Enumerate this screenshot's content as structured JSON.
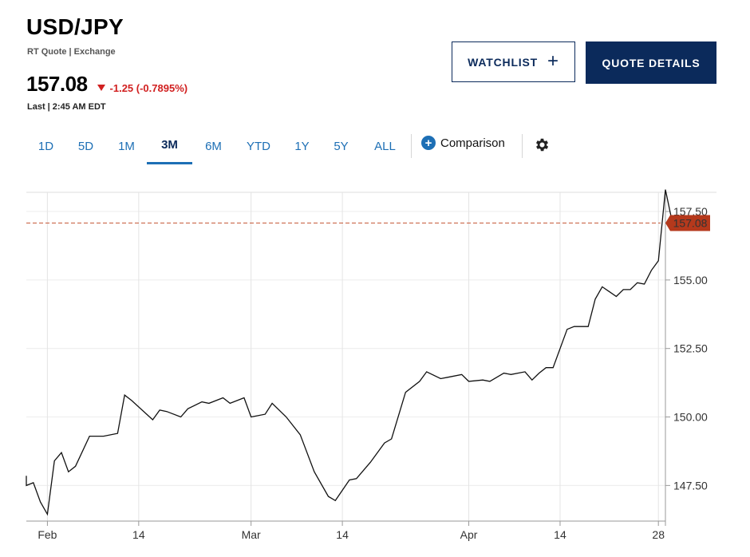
{
  "header": {
    "symbol": "USD/JPY",
    "subline": "RT Quote | Exchange",
    "price": "157.08",
    "change": "-1.25 (-0.7895%)",
    "last": "Last | 2:45 AM EDT"
  },
  "buttons": {
    "watchlist": "WATCHLIST",
    "quote_details": "QUOTE DETAILS"
  },
  "tabs": [
    {
      "label": "1D",
      "active": false
    },
    {
      "label": "5D",
      "active": false
    },
    {
      "label": "1M",
      "active": false
    },
    {
      "label": "3M",
      "active": true
    },
    {
      "label": "6M",
      "active": false
    },
    {
      "label": "YTD",
      "active": false
    },
    {
      "label": "1Y",
      "active": false
    },
    {
      "label": "5Y",
      "active": false
    },
    {
      "label": "ALL",
      "active": false
    }
  ],
  "comparison_label": "Comparison",
  "colors": {
    "accent": "#1d6fb5",
    "navy": "#0b2a5b",
    "down": "#d12020",
    "price_tag": "#b5391c",
    "last_line": "#c55a3a"
  },
  "icons": {
    "watchlist": "plus-icon",
    "comparison": "plus-circle-icon",
    "settings": "gear-icon"
  },
  "chart_data": {
    "type": "line",
    "title": "",
    "xlabel": "",
    "ylabel": "",
    "ylim": [
      146.2,
      158.2
    ],
    "xlim": [
      "2024-01-29",
      "2024-04-29"
    ],
    "y_ticks": [
      147.5,
      150.0,
      152.5,
      155.0,
      157.5
    ],
    "y_tick_labels": [
      "147.50",
      "150.00",
      "152.50",
      "155.00",
      "157.50"
    ],
    "x_ticks": [
      "2024-02-01",
      "2024-02-14",
      "2024-03-01",
      "2024-03-14",
      "2024-04-01",
      "2024-04-14",
      "2024-04-28"
    ],
    "x_tick_labels": [
      "Feb",
      "14",
      "Mar",
      "14",
      "Apr",
      "14",
      "28"
    ],
    "grid": true,
    "last_value": 157.08,
    "last_value_label": "157.08",
    "series": [
      {
        "points": [
          [
            "2024-01-29",
            147.85
          ],
          [
            "2024-01-29",
            147.5
          ],
          [
            "2024-01-30",
            147.6
          ],
          [
            "2024-01-31",
            146.9
          ],
          [
            "2024-02-01",
            146.45
          ],
          [
            "2024-02-02",
            148.4
          ],
          [
            "2024-02-03",
            148.7
          ],
          [
            "2024-02-04",
            148.0
          ],
          [
            "2024-02-05",
            148.2
          ],
          [
            "2024-02-07",
            149.3
          ],
          [
            "2024-02-09",
            149.3
          ],
          [
            "2024-02-11",
            149.4
          ],
          [
            "2024-02-12",
            150.8
          ],
          [
            "2024-02-13",
            150.6
          ],
          [
            "2024-02-16",
            149.9
          ],
          [
            "2024-02-17",
            150.25
          ],
          [
            "2024-02-18",
            150.2
          ],
          [
            "2024-02-20",
            150.0
          ],
          [
            "2024-02-21",
            150.3
          ],
          [
            "2024-02-23",
            150.55
          ],
          [
            "2024-02-24",
            150.5
          ],
          [
            "2024-02-26",
            150.7
          ],
          [
            "2024-02-27",
            150.5
          ],
          [
            "2024-02-29",
            150.7
          ],
          [
            "2024-03-01",
            150.0
          ],
          [
            "2024-03-03",
            150.1
          ],
          [
            "2024-03-04",
            150.5
          ],
          [
            "2024-03-06",
            150.0
          ],
          [
            "2024-03-08",
            149.35
          ],
          [
            "2024-03-10",
            148.0
          ],
          [
            "2024-03-12",
            147.1
          ],
          [
            "2024-03-13",
            146.95
          ],
          [
            "2024-03-15",
            147.7
          ],
          [
            "2024-03-16",
            147.75
          ],
          [
            "2024-03-18",
            148.35
          ],
          [
            "2024-03-20",
            149.05
          ],
          [
            "2024-03-21",
            149.2
          ],
          [
            "2024-03-23",
            150.9
          ],
          [
            "2024-03-25",
            151.3
          ],
          [
            "2024-03-26",
            151.65
          ],
          [
            "2024-03-28",
            151.4
          ],
          [
            "2024-03-29",
            151.45
          ],
          [
            "2024-03-31",
            151.55
          ],
          [
            "2024-04-01",
            151.3
          ],
          [
            "2024-04-03",
            151.35
          ],
          [
            "2024-04-04",
            151.3
          ],
          [
            "2024-04-06",
            151.6
          ],
          [
            "2024-04-07",
            151.55
          ],
          [
            "2024-04-09",
            151.65
          ],
          [
            "2024-04-10",
            151.35
          ],
          [
            "2024-04-11",
            151.6
          ],
          [
            "2024-04-12",
            151.8
          ],
          [
            "2024-04-13",
            151.8
          ],
          [
            "2024-04-15",
            153.2
          ],
          [
            "2024-04-16",
            153.3
          ],
          [
            "2024-04-18",
            153.3
          ],
          [
            "2024-04-19",
            154.3
          ],
          [
            "2024-04-20",
            154.75
          ],
          [
            "2024-04-22",
            154.4
          ],
          [
            "2024-04-23",
            154.65
          ],
          [
            "2024-04-24",
            154.65
          ],
          [
            "2024-04-25",
            154.9
          ],
          [
            "2024-04-26",
            154.85
          ],
          [
            "2024-04-27",
            155.35
          ],
          [
            "2024-04-28",
            155.7
          ],
          [
            "2024-04-29",
            158.3
          ],
          [
            "2024-04-30",
            157.08
          ]
        ]
      }
    ]
  }
}
